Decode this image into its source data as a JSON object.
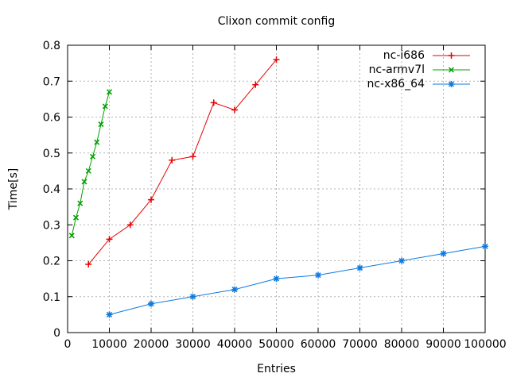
{
  "chart_data": {
    "type": "line",
    "title": "Clixon commit config",
    "xlabel": "Entries",
    "ylabel": "Time[s]",
    "xlim": [
      0,
      100000
    ],
    "ylim": [
      0,
      0.8
    ],
    "x_ticks": [
      0,
      10000,
      20000,
      30000,
      40000,
      50000,
      60000,
      70000,
      80000,
      90000,
      100000
    ],
    "y_ticks": [
      0,
      0.1,
      0.2,
      0.3,
      0.4,
      0.5,
      0.6,
      0.7,
      0.8
    ],
    "grid": true,
    "legend_position": "top-right-inside",
    "colors": {
      "background": "#ffffff",
      "axis": "#000000",
      "grid": "#b3b3b3",
      "text": "#000000"
    },
    "series": [
      {
        "name": "nc-i686",
        "color": "#e60000",
        "marker": "plus",
        "x": [
          5000,
          10000,
          15000,
          20000,
          25000,
          30000,
          35000,
          40000,
          45000,
          50000
        ],
        "y": [
          0.19,
          0.26,
          0.3,
          0.37,
          0.48,
          0.49,
          0.64,
          0.62,
          0.69,
          0.76
        ]
      },
      {
        "name": "nc-armv7l",
        "color": "#00a000",
        "marker": "cross",
        "x": [
          1000,
          2000,
          3000,
          4000,
          5000,
          6000,
          7000,
          8000,
          9000,
          10000
        ],
        "y": [
          0.27,
          0.32,
          0.36,
          0.42,
          0.45,
          0.49,
          0.53,
          0.58,
          0.63,
          0.67
        ]
      },
      {
        "name": "nc-x86_64",
        "color": "#0d7ae0",
        "marker": "star",
        "x": [
          10000,
          20000,
          30000,
          40000,
          50000,
          60000,
          70000,
          80000,
          90000,
          100000
        ],
        "y": [
          0.05,
          0.08,
          0.1,
          0.12,
          0.15,
          0.16,
          0.18,
          0.2,
          0.22,
          0.24
        ]
      }
    ]
  }
}
